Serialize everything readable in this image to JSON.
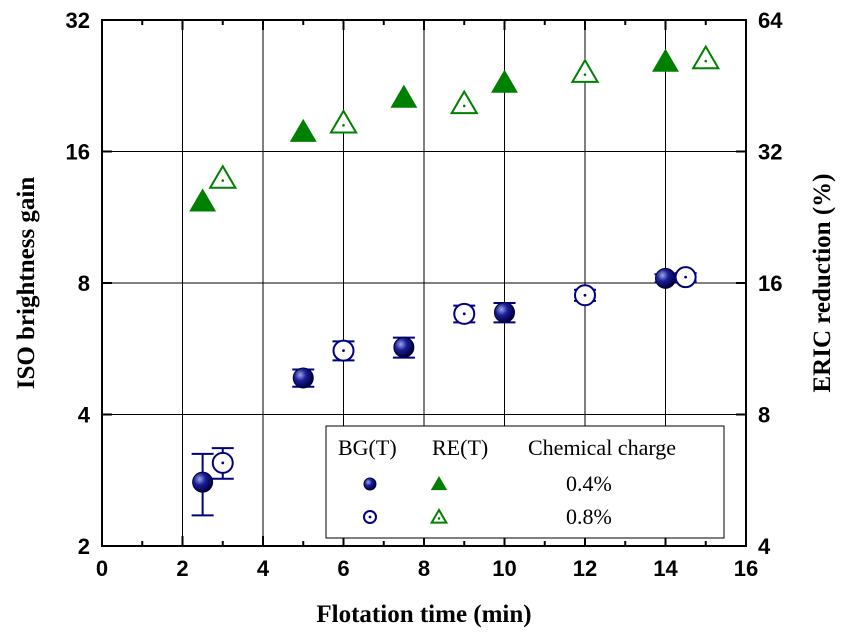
{
  "chart_data": {
    "type": "scatter",
    "xlabel": "Flotation time (min)",
    "ylabel": "ISO brightness gain",
    "y2label": "ERIC reduction (%)",
    "xlim": [
      0,
      16
    ],
    "ylim": [
      2,
      32
    ],
    "y2lim": [
      4,
      64
    ],
    "yscale": "log2",
    "y2scale": "log2",
    "grid": true,
    "xticks": [
      "0",
      "2",
      "4",
      "6",
      "8",
      "10",
      "12",
      "14",
      "16"
    ],
    "yticks": [
      "2",
      "4",
      "8",
      "16",
      "32"
    ],
    "y2ticks": [
      "4",
      "8",
      "16",
      "32",
      "64"
    ],
    "series": [
      {
        "name": "BG(T) 0.4%",
        "axis": "left",
        "marker": "ball",
        "filled": true,
        "color": "#000080",
        "x": [
          2.5,
          5,
          7.5,
          10,
          14
        ],
        "y": [
          2.8,
          4.85,
          5.7,
          6.85,
          8.2
        ],
        "err": [
          0.45,
          0.22,
          0.3,
          0.35,
          0.18
        ]
      },
      {
        "name": "BG(T) 0.8%",
        "axis": "left",
        "marker": "circle-dot",
        "filled": false,
        "color": "#000080",
        "x": [
          3,
          6,
          9,
          12,
          14.5
        ],
        "y": [
          3.1,
          5.6,
          6.8,
          7.5,
          8.25
        ],
        "err": [
          0.25,
          0.28,
          0.3,
          0.22,
          0.18
        ]
      },
      {
        "name": "RE(T) 0.4%",
        "axis": "right",
        "marker": "triangle",
        "filled": true,
        "color": "#008000",
        "x": [
          2.5,
          5,
          7.5,
          10,
          14
        ],
        "y": [
          24.6,
          35.5,
          42.5,
          46.0,
          51.4
        ]
      },
      {
        "name": "RE(T) 0.8%",
        "axis": "right",
        "marker": "triangle-dot",
        "filled": false,
        "color": "#008000",
        "x": [
          3,
          6,
          9,
          12,
          15
        ],
        "y": [
          27.8,
          37.2,
          41.2,
          48.6,
          52.2
        ]
      }
    ],
    "legend": {
      "position": "bottom-right",
      "headers": [
        "BG(T)",
        "RE(T)",
        "Chemical charge"
      ],
      "rows": [
        "0.4%",
        "0.8%"
      ]
    }
  }
}
